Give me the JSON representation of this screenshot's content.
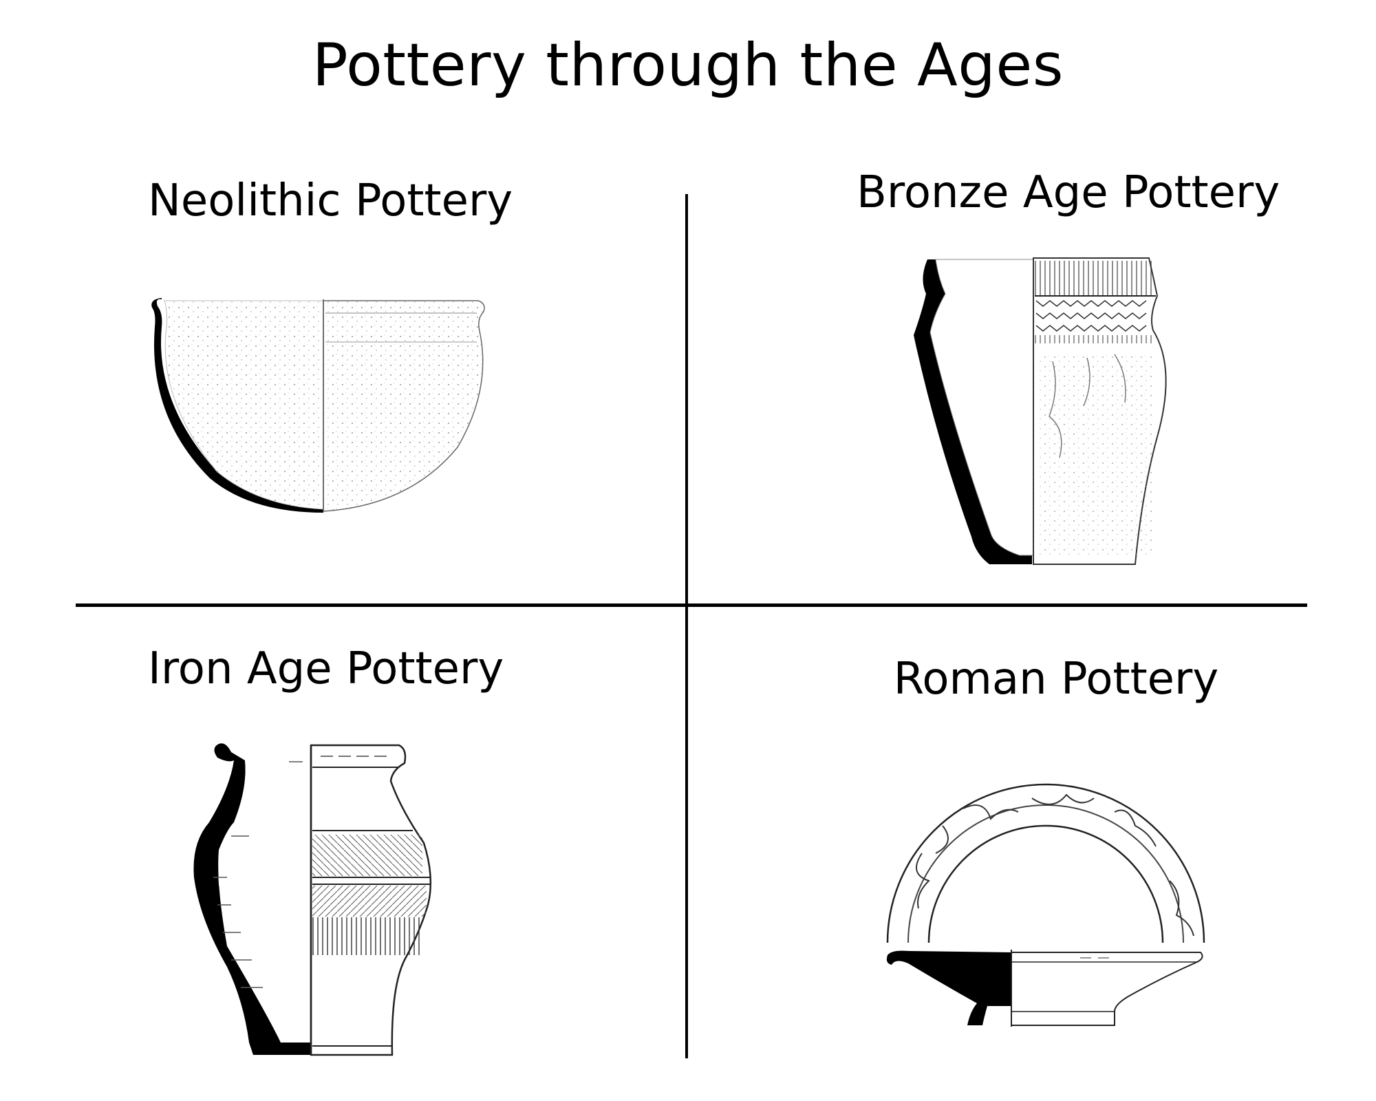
{
  "title": "Pottery through the Ages",
  "panels": [
    {
      "heading": "Neolithic Pottery",
      "icon": "neolithic-bowl-icon"
    },
    {
      "heading": "Bronze Age Pottery",
      "icon": "bronze-age-beaker-icon"
    },
    {
      "heading": "Iron Age Pottery",
      "icon": "iron-age-jar-icon"
    },
    {
      "heading": "Roman Pottery",
      "icon": "roman-dish-icon"
    }
  ]
}
